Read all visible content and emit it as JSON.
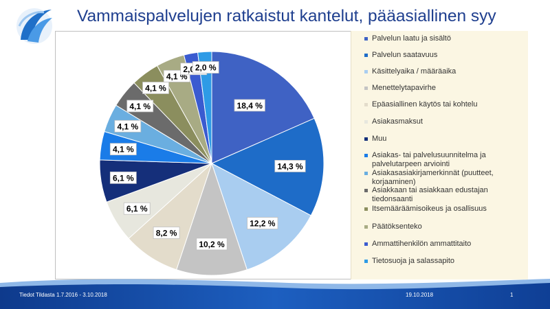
{
  "header": {
    "title": "Vammaispalvelujen ratkaistut kantelut, pääasiallinen syy"
  },
  "footer": {
    "source": "Tiedot Tildasta  1.7.2016 - 3.10.2018",
    "date": "19.10.2018",
    "page": "1"
  },
  "chart_data": {
    "type": "pie",
    "title": "",
    "legend_position": "right",
    "unit": "%",
    "categories": [
      "Palvelun laatu ja sisältö",
      "Palvelun saatavuus",
      "Käsittelyaika / määräaika",
      "Menettelytapavirhe",
      "Epäasiallinen käytös tai kohtelu",
      "Asiakasmaksut",
      "Muu",
      "Asiakas- tai palvelusuunnitelma ja palvelutarpeen arviointi",
      "Asiakasasiakirjamerkinnät (puutteet, korjaaminen)",
      "Asiakkaan tai asiakkaan edustajan tiedonsaanti",
      "Itsemääräämisoikeus ja osallisuus",
      "Päätöksenteko",
      "Ammattihenkilön ammattitaito",
      "Tietosuoja ja salassapito"
    ],
    "values": [
      18.4,
      14.3,
      12.2,
      10.2,
      8.2,
      6.1,
      6.1,
      4.1,
      4.1,
      4.1,
      4.1,
      4.1,
      2.0,
      2.0
    ],
    "data_labels": [
      "18,4 %",
      "14,3 %",
      "12,2 %",
      "10,2 %",
      "8,2 %",
      "6,1 %",
      "6,1 %",
      "4,1 %",
      "4,1 %",
      "4,1 %",
      "4,1 %",
      "4,1 %",
      "2,0 %",
      "2,0 %"
    ],
    "colors": [
      "#3f62c4",
      "#1e6cc8",
      "#a9cdf0",
      "#c4c4c4",
      "#e3dccb",
      "#e7e7de",
      "#152f7a",
      "#1a7ce8",
      "#6aaee0",
      "#6b6b6b",
      "#8b8e5e",
      "#a8ab84",
      "#3a5bd0",
      "#2e9be6"
    ]
  }
}
